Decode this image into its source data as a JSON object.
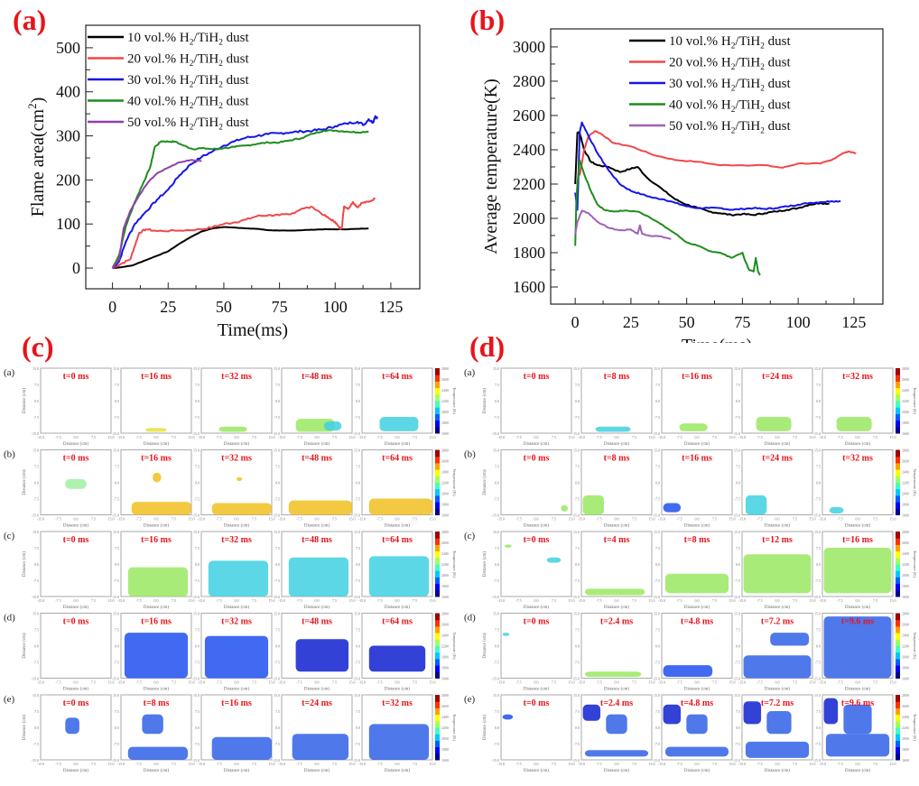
{
  "panels": {
    "a": "(a)",
    "b": "(b)",
    "c": "(c)",
    "d": "(d)"
  },
  "chart_data": [
    {
      "id": "a",
      "type": "line",
      "title": "",
      "xlabel": "Time(ms)",
      "ylabel": "Flame area(cm²)",
      "ylabel_parts": [
        "Flame area(cm",
        "2",
        ")"
      ],
      "xlim": [
        -12,
        138
      ],
      "ylim": [
        -47,
        551
      ],
      "xticks": [
        0,
        25,
        50,
        75,
        100,
        125
      ],
      "yticks": [
        0,
        100,
        200,
        300,
        400,
        500
      ],
      "grid": false,
      "legend_position": "top-left",
      "series": [
        {
          "name": "10 vol.% H2/TiH2 dust",
          "label_parts": [
            "10 vol.% H",
            "2",
            "/TiH",
            "2",
            " dust"
          ],
          "color": "#000000",
          "x": [
            0,
            4,
            9,
            15,
            20,
            25,
            30,
            35,
            40,
            45,
            50,
            55,
            60,
            65,
            70,
            75,
            80,
            85,
            90,
            95,
            100,
            105,
            110,
            115
          ],
          "y": [
            0,
            2,
            6,
            18,
            28,
            38,
            55,
            70,
            83,
            90,
            93,
            92,
            90,
            89,
            86,
            85,
            85,
            86,
            87,
            88,
            88,
            88,
            89,
            90
          ]
        },
        {
          "name": "20 vol.% H2/TiH2 dust",
          "label_parts": [
            "20 vol.% H",
            "2",
            "/TiH",
            "2",
            " dust"
          ],
          "color": "#f04848",
          "x": [
            0,
            4,
            8,
            10,
            12,
            15,
            20,
            30,
            40,
            45,
            50,
            55,
            60,
            65,
            70,
            75,
            80,
            85,
            90,
            95,
            98,
            100,
            102,
            103,
            104,
            106,
            108,
            110,
            112,
            115,
            118
          ],
          "y": [
            0,
            10,
            20,
            50,
            80,
            88,
            84,
            85,
            88,
            93,
            100,
            104,
            110,
            118,
            120,
            120,
            122,
            135,
            138,
            120,
            110,
            105,
            90,
            92,
            140,
            135,
            150,
            138,
            148,
            150,
            158
          ]
        },
        {
          "name": "30 vol.% H2/TiH2 dust",
          "label_parts": [
            "30 vol.% H",
            "2",
            "/TiH",
            "2",
            " dust"
          ],
          "color": "#1515e8",
          "x": [
            0,
            3,
            6,
            10,
            15,
            20,
            25,
            30,
            35,
            40,
            45,
            50,
            55,
            60,
            65,
            70,
            75,
            80,
            85,
            90,
            95,
            100,
            105,
            110,
            113,
            115,
            117,
            118,
            119
          ],
          "y": [
            0,
            15,
            60,
            100,
            128,
            155,
            178,
            210,
            235,
            252,
            265,
            278,
            288,
            296,
            300,
            304,
            306,
            308,
            310,
            312,
            315,
            322,
            328,
            332,
            325,
            338,
            330,
            345,
            340
          ]
        },
        {
          "name": "40 vol.% H2/TiH2 dust",
          "label_parts": [
            "40 vol.% H",
            "2",
            "/TiH",
            "2",
            " dust"
          ],
          "color": "#1e8c1e",
          "x": [
            0,
            3,
            6,
            10,
            14,
            17,
            19,
            22,
            25,
            28,
            32,
            36,
            40,
            45,
            50,
            55,
            60,
            65,
            70,
            75,
            80,
            85,
            90,
            95,
            100,
            105,
            110,
            115
          ],
          "y": [
            0,
            30,
            95,
            150,
            195,
            230,
            275,
            288,
            287,
            287,
            278,
            270,
            272,
            270,
            272,
            275,
            278,
            282,
            285,
            285,
            290,
            295,
            305,
            312,
            312,
            310,
            308,
            310
          ]
        },
        {
          "name": "50 vol.% H2/TiH2 dust",
          "label_parts": [
            "50 vol.% H",
            "2",
            "/TiH",
            "2",
            " dust"
          ],
          "color": "#9040a8",
          "x": [
            0,
            3,
            5,
            8,
            12,
            16,
            20,
            25,
            30,
            35,
            40
          ],
          "y": [
            0,
            20,
            90,
            130,
            165,
            195,
            215,
            228,
            240,
            245,
            243
          ]
        }
      ]
    },
    {
      "id": "b",
      "type": "line",
      "title": "",
      "xlabel": "Time(ms)",
      "ylabel": "Average temperature(K)",
      "xlim": [
        -11,
        138
      ],
      "ylim": [
        1500,
        3105
      ],
      "xticks": [
        0,
        25,
        50,
        75,
        100,
        125
      ],
      "yticks": [
        1600,
        1800,
        2000,
        2200,
        2400,
        2600,
        2800,
        3000
      ],
      "grid": false,
      "legend_position": "top-center",
      "series": [
        {
          "name": "10 vol.% H2/TiH2 dust",
          "label_parts": [
            "10 vol.% H",
            "2",
            "/TiH",
            "2",
            " dust"
          ],
          "color": "#000000",
          "x": [
            0,
            0.5,
            1,
            2,
            4,
            7,
            10,
            15,
            20,
            25,
            28,
            32,
            40,
            45,
            50,
            55,
            60,
            65,
            70,
            75,
            80,
            85,
            90,
            95,
            100,
            105,
            110,
            114
          ],
          "y": [
            2200,
            2350,
            2500,
            2500,
            2400,
            2330,
            2310,
            2300,
            2270,
            2290,
            2300,
            2240,
            2160,
            2110,
            2080,
            2060,
            2040,
            2030,
            2020,
            2025,
            2020,
            2030,
            2040,
            2050,
            2060,
            2080,
            2090,
            2085
          ]
        },
        {
          "name": "20 vol.% H2/TiH2 dust",
          "label_parts": [
            "20 vol.% H",
            "2",
            "/TiH",
            "2",
            " dust"
          ],
          "color": "#f04848",
          "x": [
            2,
            4,
            6,
            9,
            12,
            17,
            25,
            35,
            45,
            55,
            65,
            75,
            85,
            93,
            100,
            110,
            115,
            120,
            123,
            126
          ],
          "y": [
            2250,
            2400,
            2480,
            2510,
            2490,
            2440,
            2420,
            2370,
            2340,
            2330,
            2310,
            2310,
            2310,
            2295,
            2320,
            2320,
            2340,
            2380,
            2390,
            2380
          ]
        },
        {
          "name": "30 vol.% H2/TiH2 dust",
          "label_parts": [
            "30 vol.% H",
            "2",
            "/TiH",
            "2",
            " dust"
          ],
          "color": "#1515e8",
          "x": [
            0,
            1,
            2,
            3,
            6,
            10,
            15,
            20,
            25,
            30,
            35,
            40,
            45,
            50,
            55,
            60,
            65,
            70,
            75,
            80,
            85,
            90,
            95,
            100,
            105,
            110,
            115,
            119
          ],
          "y": [
            2150,
            2050,
            2500,
            2560,
            2480,
            2380,
            2280,
            2200,
            2160,
            2140,
            2120,
            2110,
            2090,
            2070,
            2060,
            2060,
            2060,
            2050,
            2055,
            2060,
            2055,
            2060,
            2070,
            2080,
            2090,
            2095,
            2100,
            2100
          ]
        },
        {
          "name": "40 vol.% H2/TiH2 dust",
          "label_parts": [
            "40 vol.% H",
            "2",
            "/TiH",
            "2",
            " dust"
          ],
          "color": "#1e8c1e",
          "x": [
            0,
            0.5,
            1,
            2,
            4,
            7,
            10,
            13,
            17,
            22,
            28,
            33,
            38,
            45,
            50,
            55,
            60,
            65,
            70,
            75,
            76,
            78,
            80,
            81,
            82,
            83
          ],
          "y": [
            1840,
            2100,
            2200,
            2340,
            2260,
            2160,
            2080,
            2050,
            2040,
            2045,
            2040,
            2010,
            1970,
            1910,
            1860,
            1840,
            1810,
            1800,
            1770,
            1800,
            1760,
            1700,
            1690,
            1770,
            1690,
            1670
          ]
        },
        {
          "name": "50 vol.% H2/TiH2 dust",
          "label_parts": [
            "50 vol.% H",
            "2",
            "/TiH",
            "2",
            " dust"
          ],
          "color": "#a060b8",
          "x": [
            0,
            1,
            3,
            6,
            10,
            15,
            20,
            25,
            28,
            29,
            30,
            33,
            38,
            43
          ],
          "y": [
            1910,
            1980,
            2045,
            2030,
            1980,
            1945,
            1930,
            1935,
            1910,
            1960,
            1910,
            1900,
            1895,
            1880
          ]
        }
      ]
    }
  ],
  "heatmaps": {
    "c": {
      "rows": [
        {
          "label": "(a)",
          "times": [
            "t=0 ms",
            "t=16 ms",
            "t=32 ms",
            "t=48 ms",
            "t=64 ms"
          ]
        },
        {
          "label": "(b)",
          "times": [
            "t=0 ms",
            "t=16 ms",
            "t=32 ms",
            "t=48 ms",
            "t=64 ms"
          ]
        },
        {
          "label": "(c)",
          "times": [
            "t=0 ms",
            "t=16 ms",
            "t=32 ms",
            "t=48 ms",
            "t=64 ms"
          ]
        },
        {
          "label": "(d)",
          "times": [
            "t=0 ms",
            "t=16 ms",
            "t=32 ms",
            "t=48 ms",
            "t=64 ms"
          ]
        },
        {
          "label": "(e)",
          "times": [
            "t=0 ms",
            "t=8 ms",
            "t=16 ms",
            "t=24 ms",
            "t=32 ms"
          ]
        }
      ]
    },
    "d": {
      "rows": [
        {
          "label": "(a)",
          "times": [
            "t=0 ms",
            "t=8 ms",
            "t=16 ms",
            "t=24 ms",
            "t=32 ms"
          ]
        },
        {
          "label": "(b)",
          "times": [
            "t=0 ms",
            "t=8 ms",
            "t=16 ms",
            "t=24 ms",
            "t=32 ms"
          ]
        },
        {
          "label": "(c)",
          "times": [
            "t=0 ms",
            "t=4 ms",
            "t=8 ms",
            "t=12 ms",
            "t=16 ms"
          ]
        },
        {
          "label": "(d)",
          "times": [
            "t=0 ms",
            "t=2.4 ms",
            "t=4.8 ms",
            "t=7.2 ms",
            "t=9.6 ms"
          ]
        },
        {
          "label": "(e)",
          "times": [
            "t=0 ms",
            "t=2.4 ms",
            "t=4.8 ms",
            "t=7.2 ms",
            "t=9.6 ms"
          ]
        }
      ]
    },
    "axis_ticks": [
      "15.0",
      "7.5",
      "0.0",
      "-7.5",
      "-15.0"
    ],
    "x_ticks": [
      "-15.0",
      "-7.5",
      "0.0",
      "7.5",
      "15.0"
    ],
    "xlabel": "Distance (cm)",
    "ylabel": "Distance (cm)",
    "colorbar_label": "Temperature (K)",
    "colorbar_ticks": [
      "2800",
      "2600",
      "2400",
      "2200",
      "2000",
      "1800",
      "1600"
    ]
  }
}
